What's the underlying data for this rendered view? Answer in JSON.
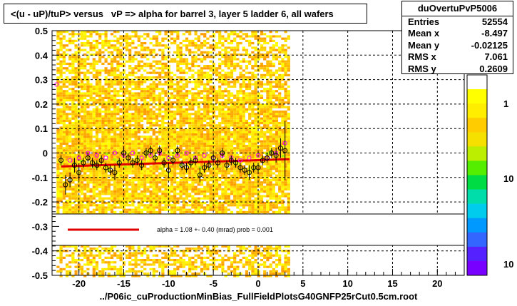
{
  "title": "<(u - uP)/tuP> versus   vP => alpha for barrel 3, layer 5 ladder 6, all wafers",
  "stats": {
    "name": "duOvertuPvP5006",
    "rows": [
      {
        "key": "Entries",
        "value": "52554"
      },
      {
        "key": "Mean x",
        "value": "-8.497"
      },
      {
        "key": "Mean y",
        "value": "-0.02125"
      },
      {
        "key": "RMS x",
        "value": "7.061"
      },
      {
        "key": "RMS y",
        "value": "0.2609"
      }
    ]
  },
  "legend": {
    "text": "alpha =     1.08 +-  0.40 (mrad) prob = 0.001",
    "line_color": "#e00000"
  },
  "footer": "../P06ic_cuProductionMinBias_FullFieldPlotsG40GNFP25rCut0.5cm.root",
  "colors": {
    "fit_line": "#e00000",
    "profile_points": "#000000",
    "secondary_points": "#ff00ff",
    "grid": "#000000"
  },
  "chart_data": {
    "type": "heatmap",
    "title": "<(u - uP)/tuP> versus   vP => alpha for barrel 3, layer 5 ladder 6, all wafers",
    "xlabel": "",
    "ylabel": "",
    "xlim": [
      -23,
      23
    ],
    "ylim": [
      -0.5,
      0.5
    ],
    "x_ticks": [
      "-20",
      "-15",
      "-10",
      "-5",
      "0",
      "5",
      "10",
      "15",
      "20"
    ],
    "y_ticks": [
      "-0.5",
      "-0.4",
      "-0.3",
      "-0.2",
      "-0.1",
      "0",
      "0.1",
      "0.2",
      "0.3",
      "0.4",
      "0.5"
    ],
    "grid": true,
    "heatmap_x_range": [
      -22.5,
      3.5
    ],
    "colorbar_labels": [
      "1",
      "10",
      "10"
    ],
    "fit_line": {
      "x": [
        -22.0,
        3.5
      ],
      "y": [
        -0.055,
        -0.025
      ]
    },
    "profile_points": {
      "x": [
        -22.0,
        -21.5,
        -21.0,
        -20.5,
        -20.0,
        -19.5,
        -19.0,
        -18.5,
        -18.0,
        -17.5,
        -17.0,
        -16.5,
        -16.0,
        -15.5,
        -15.0,
        -14.5,
        -14.0,
        -13.5,
        -13.0,
        -12.5,
        -12.0,
        -11.5,
        -11.0,
        -10.5,
        -10.0,
        -9.5,
        -9.0,
        -8.5,
        -8.0,
        -7.5,
        -7.0,
        -6.5,
        -6.0,
        -5.5,
        -5.0,
        -4.5,
        -4.0,
        -3.5,
        -3.0,
        -2.5,
        -2.0,
        -1.5,
        -1.0,
        -0.5,
        0.0,
        0.5,
        1.0,
        1.5,
        2.0,
        2.5,
        3.0
      ],
      "y": [
        -0.03,
        -0.13,
        -0.11,
        -0.05,
        -0.08,
        -0.04,
        -0.02,
        -0.04,
        -0.05,
        -0.03,
        -0.06,
        -0.07,
        -0.08,
        -0.04,
        0.0,
        -0.02,
        -0.04,
        -0.03,
        -0.05,
        0.0,
        0.01,
        -0.02,
        0.01,
        -0.04,
        -0.07,
        -0.03,
        0.01,
        -0.05,
        -0.06,
        -0.04,
        -0.03,
        -0.09,
        -0.06,
        -0.05,
        -0.02,
        -0.04,
        0.0,
        -0.05,
        -0.03,
        -0.04,
        -0.06,
        -0.07,
        -0.08,
        -0.06,
        -0.06,
        -0.03,
        -0.02,
        0.0,
        -0.01,
        0.02,
        0.01
      ],
      "yerr": [
        0.02,
        0.04,
        0.03,
        0.03,
        0.03,
        0.02,
        0.02,
        0.02,
        0.02,
        0.02,
        0.02,
        0.02,
        0.03,
        0.02,
        0.02,
        0.02,
        0.02,
        0.02,
        0.02,
        0.02,
        0.02,
        0.02,
        0.02,
        0.02,
        0.03,
        0.02,
        0.02,
        0.02,
        0.02,
        0.02,
        0.02,
        0.03,
        0.02,
        0.02,
        0.02,
        0.02,
        0.02,
        0.02,
        0.02,
        0.02,
        0.02,
        0.02,
        0.03,
        0.02,
        0.02,
        0.02,
        0.02,
        0.02,
        0.03,
        0.04,
        0.12
      ]
    },
    "secondary_points": {
      "x": [
        -22.5,
        -21.0,
        -20.0,
        -19.0,
        -18.0,
        -17.0,
        -16.0,
        -15.0,
        -14.0,
        -13.0,
        -12.0,
        -11.0,
        -10.0,
        -9.0,
        -8.0,
        -7.0,
        -6.0,
        -5.0,
        -4.0,
        -3.0,
        -2.0,
        -1.0,
        0.0,
        1.0,
        2.0,
        3.0
      ],
      "y": [
        0.28,
        -0.03,
        -0.02,
        0.0,
        -0.01,
        -0.02,
        0.0,
        -0.01,
        0.0,
        -0.02,
        -0.01,
        0.0,
        -0.02,
        -0.01,
        0.0,
        -0.02,
        -0.01,
        -0.02,
        -0.01,
        -0.02,
        -0.03,
        -0.02,
        -0.01,
        -0.02,
        0.0,
        0.04
      ]
    }
  }
}
